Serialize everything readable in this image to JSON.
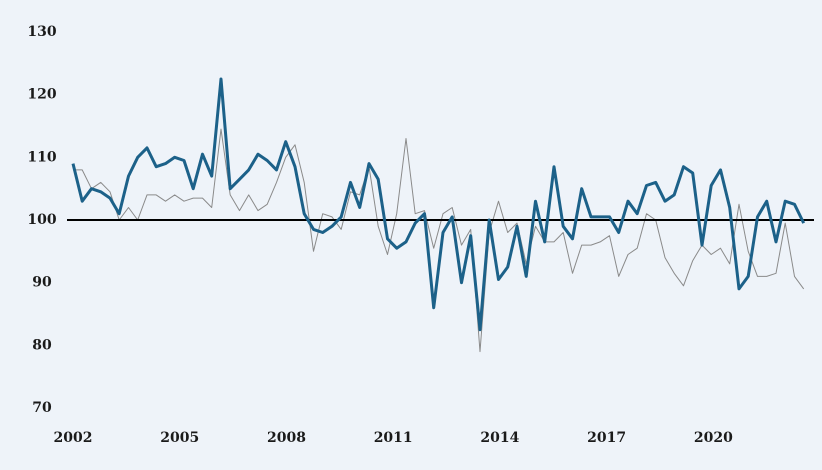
{
  "chart_data": {
    "type": "line",
    "x": [
      2002,
      2002.26,
      2002.52,
      2002.78,
      2003.04,
      2003.3,
      2003.56,
      2003.82,
      2004.08,
      2004.34,
      2004.6,
      2004.86,
      2005.12,
      2005.38,
      2005.64,
      2005.9,
      2006.16,
      2006.42,
      2006.68,
      2006.94,
      2007.2,
      2007.46,
      2007.72,
      2007.98,
      2008.24,
      2008.5,
      2008.76,
      2009.02,
      2009.28,
      2009.54,
      2009.8,
      2010.06,
      2010.32,
      2010.58,
      2010.84,
      2011.1,
      2011.36,
      2011.62,
      2011.88,
      2012.14,
      2012.4,
      2012.66,
      2012.92,
      2013.18,
      2013.44,
      2013.7,
      2013.96,
      2014.22,
      2014.48,
      2014.74,
      2015,
      2015.26,
      2015.52,
      2015.78,
      2016.04,
      2016.3,
      2016.56,
      2016.82,
      2017.08,
      2017.34,
      2017.6,
      2017.86,
      2018.12,
      2018.38,
      2018.64,
      2018.9,
      2019.16,
      2019.42,
      2019.68,
      2019.94,
      2020.2,
      2020.46,
      2020.72,
      2020.98,
      2021.24,
      2021.5,
      2021.76,
      2022.02,
      2022.28,
      2022.54
    ],
    "series": [
      {
        "color": "#8a8a8a",
        "width": 1,
        "values": [
          108,
          108,
          105,
          106,
          104.5,
          100,
          102,
          100,
          104,
          104,
          103,
          104,
          103,
          103.5,
          103.5,
          102,
          114.5,
          104,
          101.5,
          104,
          101.5,
          102.5,
          106,
          110,
          112,
          106,
          95,
          101,
          100.5,
          98.5,
          104.5,
          104,
          108.5,
          99,
          94.5,
          101,
          113,
          101,
          101.5,
          95.5,
          101,
          102,
          96,
          98.5,
          79,
          98,
          103,
          98,
          99.5,
          93,
          99,
          96.5,
          96.5,
          98,
          91.5,
          96,
          96,
          96.5,
          97.5,
          91,
          94.5,
          95.5,
          101,
          100,
          94,
          91.5,
          89.5,
          93.5,
          96,
          94.5,
          95.5,
          93,
          102.5,
          95,
          91,
          91,
          91.5,
          99.5,
          91,
          89
        ]
      },
      {
        "color": "#1c6189",
        "width": 3,
        "values": [
          109,
          103,
          105,
          104.5,
          103.5,
          101,
          107,
          110,
          111.5,
          108.5,
          109,
          110,
          109.5,
          105,
          110.5,
          107,
          122.5,
          105,
          106.5,
          108,
          110.5,
          109.5,
          108,
          112.5,
          108.5,
          101,
          98.5,
          98,
          99,
          100.5,
          106,
          102,
          109,
          106.5,
          97,
          95.5,
          96.5,
          99.5,
          101,
          86,
          98,
          100.5,
          90,
          97.5,
          82.5,
          100,
          90.5,
          92.5,
          99,
          91,
          103,
          96.5,
          108.5,
          99,
          97,
          105,
          100.5,
          100.5,
          100.5,
          98,
          103,
          101,
          105.5,
          106,
          103,
          104,
          108.5,
          107.5,
          96,
          105.5,
          108,
          102,
          89,
          91,
          100.5,
          103,
          96.5,
          103,
          102.5,
          99.5
        ]
      }
    ],
    "reference_line": 100,
    "xlim": [
      2002,
      2022.66
    ],
    "xticks": [
      2002,
      2005,
      2008,
      2011,
      2014,
      2017,
      2020
    ],
    "ylim": [
      70,
      130
    ],
    "yticks": [
      70,
      80,
      90,
      100,
      110,
      120,
      130
    ]
  }
}
